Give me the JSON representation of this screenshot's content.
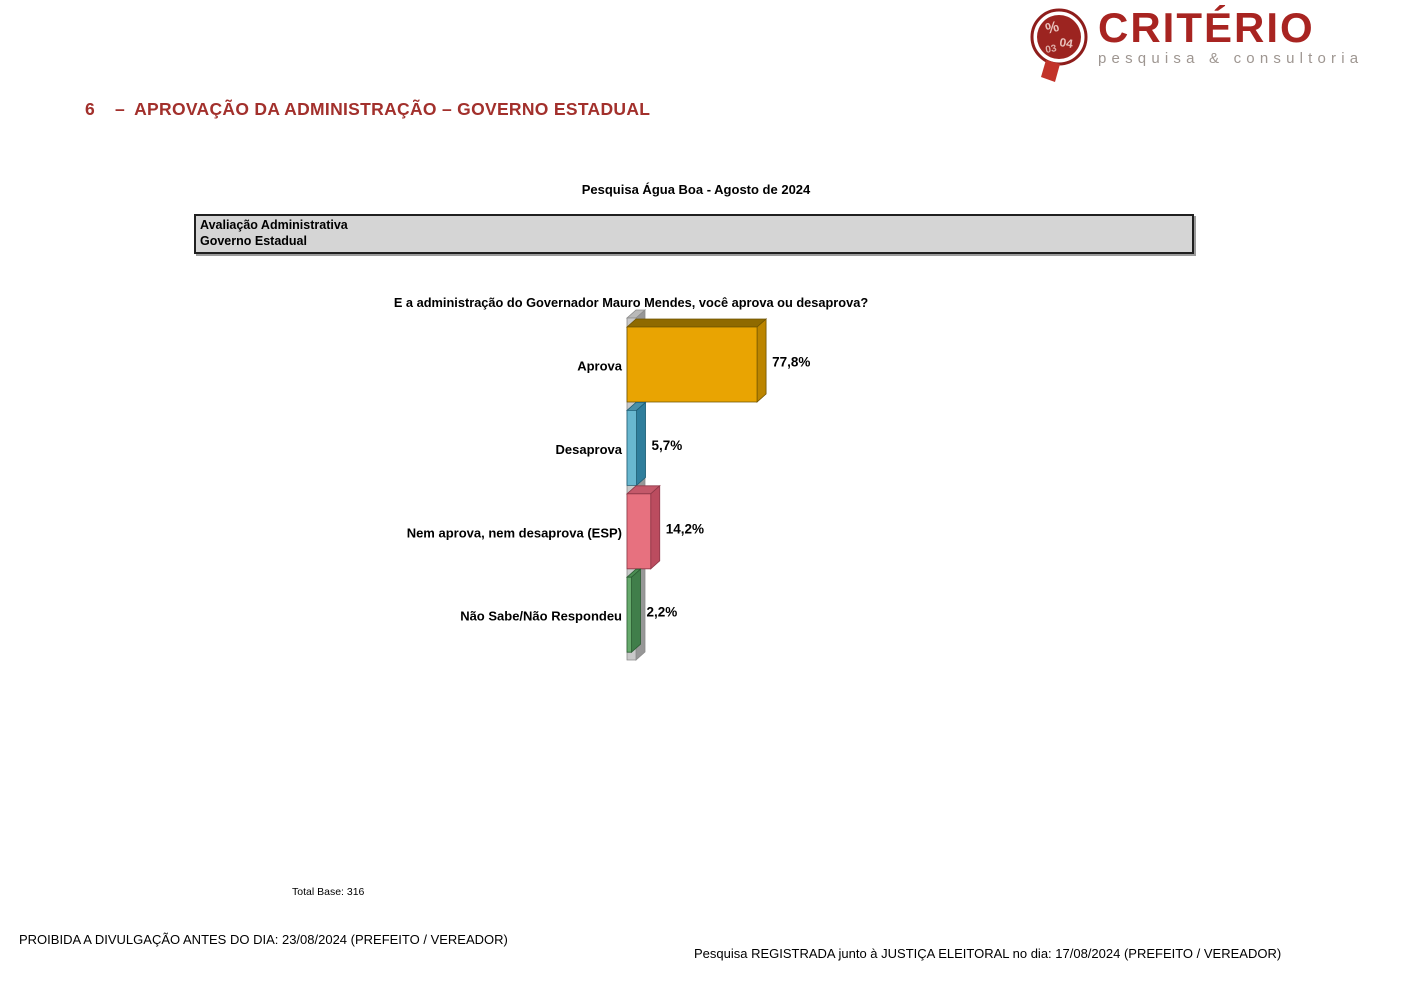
{
  "logo": {
    "name": "CRITÉRIO",
    "tagline": "pesquisa & consultoria",
    "mark_symbols": [
      "%",
      "04",
      "03"
    ],
    "brand_color": "#A82421",
    "tagline_color": "#9E9691"
  },
  "header": {
    "section_number": "6",
    "separator": "–",
    "title": "APROVAÇÃO DA ADMINISTRAÇÃO – GOVERNO ESTADUAL",
    "color": "#A2302C"
  },
  "chart_data": {
    "type": "bar",
    "orientation": "horizontal",
    "style": "3d",
    "title": "Pesquisa Água Boa - Agosto de 2024",
    "header_box": [
      "Avaliação Administrativa",
      "Governo Estadual"
    ],
    "question": "E a administração do Governador Mauro Mendes, você aprova ou desaprova?",
    "categories": [
      "Aprova",
      "Desaprova",
      "Nem aprova, nem desaprova (ESP)",
      "Não Sabe/Não Respondeu"
    ],
    "values": [
      77.8,
      5.7,
      14.2,
      2.2
    ],
    "value_labels": [
      "77,8%",
      "5,7%",
      "14,2%",
      "2,2%"
    ],
    "xlim": [
      0,
      100
    ],
    "grid": false,
    "legend": false,
    "bar_colors": [
      {
        "front": "#E9A402",
        "top": "#8F6A00",
        "side": "#BC8500",
        "outline": "#6E5300"
      },
      {
        "front": "#68B7CF",
        "top": "#4A90A8",
        "side": "#2F7E9C",
        "outline": "#1E5D74"
      },
      {
        "front": "#E7717F",
        "top": "#C4596A",
        "side": "#BB4C5F",
        "outline": "#8E3848"
      },
      {
        "front": "#66AA6C",
        "top": "#4C8E54",
        "side": "#407E4A",
        "outline": "#2C5E34"
      }
    ],
    "axis_wall_colors": {
      "front": "#C9C9C9",
      "top": "#B9B9B9",
      "side": "#979797",
      "outline": "#8B8B8B"
    },
    "total_base": "Total Base: 316"
  },
  "footer": {
    "left": "PROIBIDA A DIVULGAÇÃO ANTES DO DIA: 23/08/2024 (PREFEITO / VEREADOR)",
    "right": "Pesquisa REGISTRADA junto à JUSTIÇA ELEITORAL no dia: 17/08/2024 (PREFEITO / VEREADOR)"
  }
}
